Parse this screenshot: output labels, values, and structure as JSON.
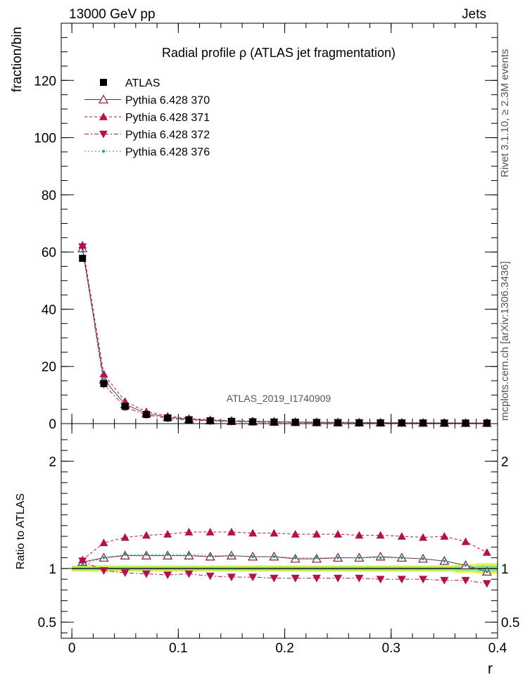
{
  "header": {
    "left": "13000 GeV pp",
    "right": "Jets"
  },
  "side_text": {
    "rivet": "Rivet 3.1.10, ≥ 2.3M events",
    "mcplots": "mcplots.cern.ch [arXiv:1306.3436]"
  },
  "chart_data": {
    "type": "line",
    "title": "Radial profile  ρ (ATLAS jet fragmentation)",
    "analysis_label": "ATLAS_2019_I1740909",
    "xlabel": "r",
    "ylabel": "fraction/bin",
    "ratio_ylabel": "Ratio to ATLAS",
    "xlim": [
      -0.01,
      0.4
    ],
    "ylim": [
      0,
      140
    ],
    "ratio_ylim": [
      0.35,
      2.35
    ],
    "x_ticks": [
      "0",
      "0.1",
      "0.2",
      "0.3",
      "0.4"
    ],
    "y_ticks": [
      "0",
      "20",
      "40",
      "60",
      "80",
      "100",
      "120"
    ],
    "ratio_ticks": [
      "0.5",
      "1",
      "2"
    ],
    "legend_position": "top-left",
    "x": [
      0.01,
      0.03,
      0.05,
      0.07,
      0.09,
      0.11,
      0.13,
      0.15,
      0.17,
      0.19,
      0.21,
      0.23,
      0.25,
      0.27,
      0.29,
      0.31,
      0.33,
      0.35,
      0.37,
      0.39
    ],
    "data": {
      "name": "ATLAS",
      "values": [
        57.8,
        14.0,
        6.0,
        3.2,
        2.0,
        1.35,
        1.0,
        0.8,
        0.65,
        0.55,
        0.47,
        0.4,
        0.35,
        0.31,
        0.28,
        0.25,
        0.23,
        0.21,
        0.2,
        0.19
      ],
      "band_halfwidth": [
        0.03,
        0.03,
        0.03,
        0.03,
        0.03,
        0.03,
        0.03,
        0.03,
        0.03,
        0.03,
        0.03,
        0.03,
        0.03,
        0.03,
        0.03,
        0.03,
        0.03,
        0.03,
        0.04,
        0.05
      ]
    },
    "series": [
      {
        "name": "Pythia 6.428 370",
        "color": "#7a1f3d",
        "marker": "triangle-up-open",
        "dash": "",
        "ratio": [
          1.06,
          1.1,
          1.12,
          1.12,
          1.12,
          1.12,
          1.11,
          1.12,
          1.11,
          1.11,
          1.09,
          1.09,
          1.1,
          1.1,
          1.11,
          1.1,
          1.09,
          1.07,
          1.03,
          0.97
        ]
      },
      {
        "name": "Pythia 6.428 371",
        "color": "#b0124f",
        "marker": "triangle-up",
        "dash": "4,3",
        "ratio": [
          1.08,
          1.24,
          1.29,
          1.31,
          1.32,
          1.34,
          1.34,
          1.34,
          1.33,
          1.33,
          1.32,
          1.32,
          1.32,
          1.31,
          1.31,
          1.3,
          1.29,
          1.3,
          1.25,
          1.15
        ]
      },
      {
        "name": "Pythia 6.428 372",
        "color": "#b0124f",
        "marker": "triangle-down",
        "dash": "6,3,2,3",
        "ratio": [
          1.07,
          0.98,
          0.96,
          0.95,
          0.94,
          0.95,
          0.93,
          0.92,
          0.92,
          0.91,
          0.91,
          0.91,
          0.91,
          0.91,
          0.9,
          0.9,
          0.9,
          0.89,
          0.89,
          0.86
        ]
      },
      {
        "name": "Pythia 6.428 376",
        "color": "#1a9e96",
        "marker": "dot",
        "dash": "2,3",
        "ratio": [
          1.04,
          1.1,
          1.13,
          1.13,
          1.13,
          1.13,
          1.12,
          1.12,
          1.11,
          1.11,
          1.1,
          1.1,
          1.1,
          1.1,
          1.1,
          1.1,
          1.09,
          1.07,
          1.03,
          0.97
        ]
      }
    ]
  }
}
